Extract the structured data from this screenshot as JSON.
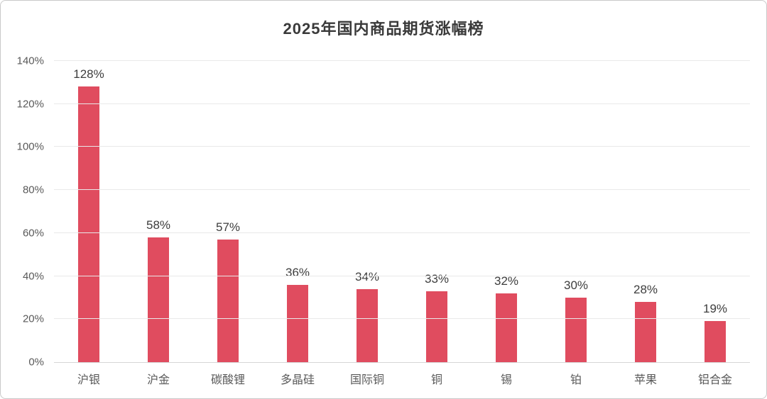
{
  "chart_data": {
    "type": "bar",
    "title": "2025年国内商品期货涨幅榜",
    "categories": [
      "沪银",
      "沪金",
      "碳酸锂",
      "多晶硅",
      "国际铜",
      "铜",
      "锡",
      "铂",
      "苹果",
      "铝合金"
    ],
    "values": [
      128,
      58,
      57,
      36,
      34,
      33,
      32,
      30,
      28,
      19
    ],
    "data_labels": [
      "128%",
      "58%",
      "57%",
      "36%",
      "34%",
      "33%",
      "32%",
      "30%",
      "28%",
      "19%"
    ],
    "yticks": [
      "0%",
      "20%",
      "40%",
      "60%",
      "80%",
      "100%",
      "120%",
      "140%"
    ],
    "ytick_values": [
      0,
      20,
      40,
      60,
      80,
      100,
      120,
      140
    ],
    "ylim": [
      0,
      140
    ],
    "xlabel": "",
    "ylabel": "",
    "grid": "horizontal",
    "legend": "none",
    "bar_color": "#e04c5f",
    "title_color": "#3a3a3a",
    "data_label_color": "#3d3d3d",
    "axis_text_color": "#595959",
    "gridline_color": "#e9e9e9",
    "axis_line_color": "#d6d6d6",
    "border_color": "#c9c9c9",
    "background_color": "#ffffff"
  }
}
